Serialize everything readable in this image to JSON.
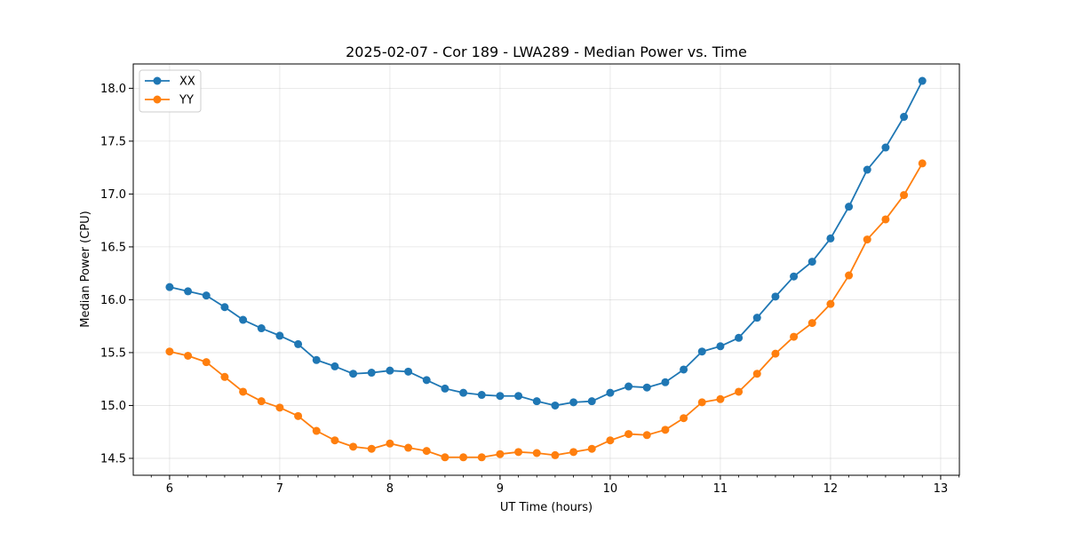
{
  "chart_data": {
    "type": "line",
    "title": "2025-02-07 - Cor 189 - LWA289 - Median Power vs. Time",
    "xlabel": "UT Time (hours)",
    "ylabel": "Median Power (CPU)",
    "xlim": [
      5.67,
      13.17
    ],
    "ylim": [
      14.34,
      18.23
    ],
    "xticks": [
      6,
      7,
      8,
      9,
      10,
      11,
      12,
      13
    ],
    "yticks": [
      14.5,
      15.0,
      15.5,
      16.0,
      16.5,
      17.0,
      17.5,
      18.0
    ],
    "ytick_labels": [
      "14.5",
      "15.0",
      "15.5",
      "16.0",
      "16.5",
      "17.0",
      "17.5",
      "18.0"
    ],
    "grid": true,
    "legend_position": "top-left",
    "x": [
      6.0,
      6.1667,
      6.3333,
      6.5,
      6.6667,
      6.8333,
      7.0,
      7.1667,
      7.3333,
      7.5,
      7.6667,
      7.8333,
      8.0,
      8.1667,
      8.3333,
      8.5,
      8.6667,
      8.8333,
      9.0,
      9.1667,
      9.3333,
      9.5,
      9.6667,
      9.8333,
      10.0,
      10.1667,
      10.3333,
      10.5,
      10.6667,
      10.8333,
      11.0,
      11.1667,
      11.3333,
      11.5,
      11.6667,
      11.8333,
      12.0,
      12.1667,
      12.3333,
      12.5,
      12.6667,
      12.8333
    ],
    "series": [
      {
        "name": "XX",
        "color": "#1f77b4",
        "values": [
          16.12,
          16.08,
          16.04,
          15.93,
          15.81,
          15.73,
          15.66,
          15.58,
          15.43,
          15.37,
          15.3,
          15.31,
          15.33,
          15.32,
          15.24,
          15.16,
          15.12,
          15.1,
          15.09,
          15.09,
          15.04,
          15.0,
          15.03,
          15.04,
          15.12,
          15.18,
          15.17,
          15.22,
          15.34,
          15.51,
          15.56,
          15.64,
          15.83,
          16.03,
          16.22,
          16.36,
          16.58,
          16.88,
          17.23,
          17.44,
          17.73,
          18.07
        ]
      },
      {
        "name": "YY",
        "color": "#ff7f0e",
        "values": [
          15.51,
          15.47,
          15.41,
          15.27,
          15.13,
          15.04,
          14.98,
          14.9,
          14.76,
          14.67,
          14.61,
          14.59,
          14.64,
          14.6,
          14.57,
          14.51,
          14.51,
          14.51,
          14.54,
          14.56,
          14.55,
          14.53,
          14.56,
          14.59,
          14.67,
          14.73,
          14.72,
          14.77,
          14.88,
          15.03,
          15.06,
          15.13,
          15.3,
          15.49,
          15.65,
          15.78,
          15.96,
          16.23,
          16.57,
          16.76,
          16.99,
          17.29
        ]
      }
    ]
  }
}
